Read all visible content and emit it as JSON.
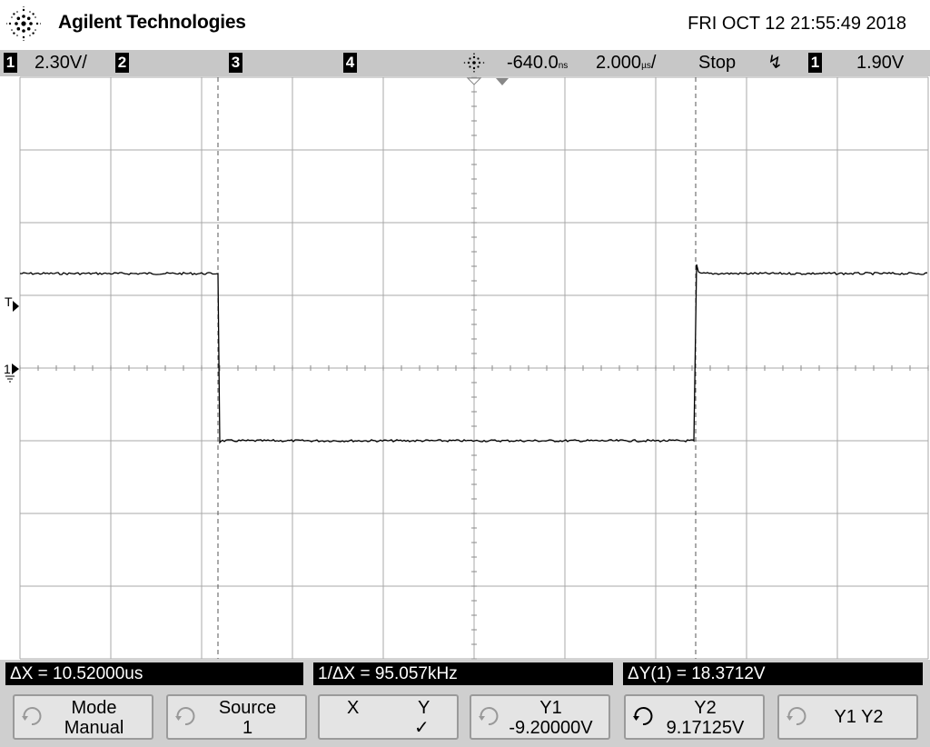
{
  "header": {
    "brand": "Agilent Technologies",
    "datetime": "FRI OCT 12 21:55:49 2018"
  },
  "status": {
    "ch1_num": "1",
    "ch1_scale": "2.30V/",
    "ch2_num": "2",
    "ch3_num": "3",
    "ch4_num": "4",
    "delay": "-640.0",
    "delay_unit": "ns",
    "timebase": "2.000",
    "timebase_unit": "µs",
    "timebase_suffix": "/",
    "run_state": "Stop",
    "trigger_slope_symbol": "↯",
    "trigger_source": "1",
    "trigger_level": "1.90V"
  },
  "screen": {
    "trigger_marker": "T",
    "channel_marker": "1"
  },
  "measurements": {
    "delta_x": "ΔX = 10.52000us",
    "inv_delta_x": "1/ΔX = 95.057kHz",
    "delta_y": "ΔY(1) = 18.3712V"
  },
  "softkeys": [
    {
      "line1": "Mode",
      "line2": "Manual"
    },
    {
      "line1": "Source",
      "line2": "1"
    },
    {
      "line1_a": "X",
      "line1_b": "Y",
      "line2": "✓"
    },
    {
      "line1": "Y1",
      "line2": "-9.20000V"
    },
    {
      "line1": "Y2",
      "line2": "9.17125V"
    },
    {
      "line1": "Y1 Y2"
    }
  ],
  "colors": {
    "grid": "#a8a8a8",
    "trace": "#000000",
    "statusbar_bg": "#c7c7c7",
    "softkey_bg": "#e4e4e4"
  },
  "waveform": {
    "high_level_div": 2.3,
    "low_level_div": 0,
    "falling_edge_time_us": -5.64,
    "rising_edge_time_us": 4.88
  }
}
